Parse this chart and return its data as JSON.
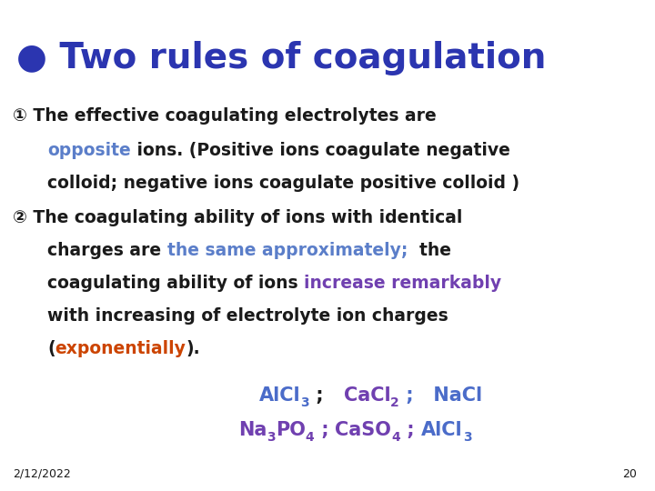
{
  "background_color": "#ffffff",
  "title_bullet": "●",
  "title_text": " Two rules of coagulation",
  "title_color": "#2b35b0",
  "title_fontsize": 28,
  "body_fontsize": 13.5,
  "chem_fontsize": 15,
  "chem_sub_fontsize": 10,
  "black": "#1a1a1a",
  "blue_body": "#5b7ec9",
  "blue_chem": "#4b6cc9",
  "purple_color": "#7040b0",
  "orange_color": "#cc4400",
  "date_text": "2/12/2022",
  "page_num": "20",
  "fig_width": 7.2,
  "fig_height": 5.4
}
